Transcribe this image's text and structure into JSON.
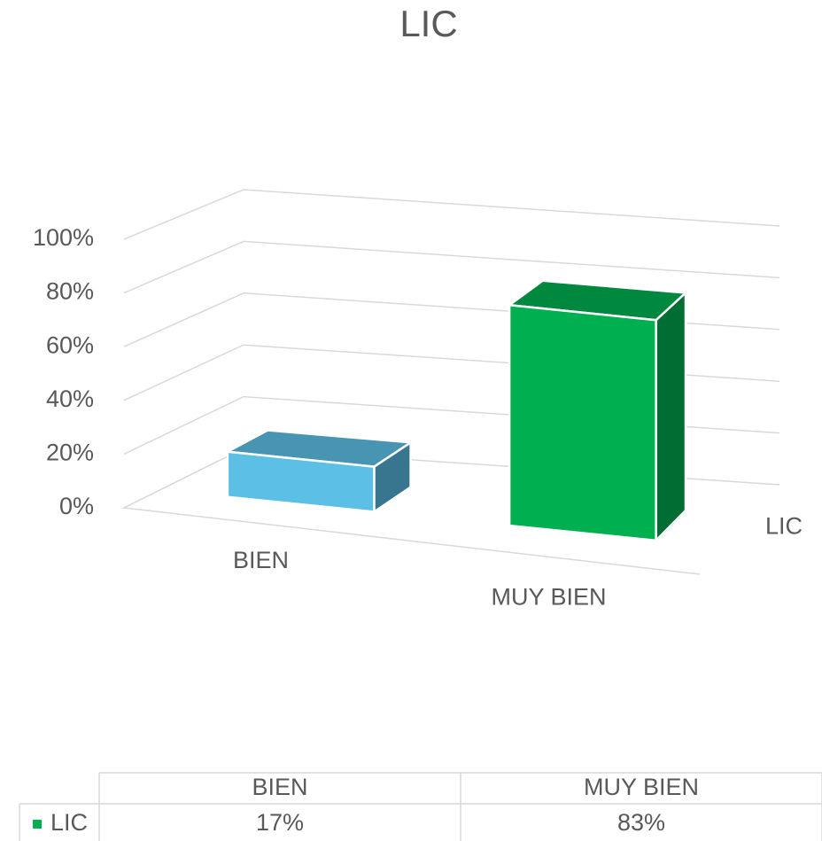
{
  "chart_data": {
    "type": "bar3d",
    "title": "LIC",
    "categories": [
      "BIEN",
      "MUY BIEN"
    ],
    "series": [
      {
        "name": "LIC",
        "color": "#00b050",
        "point_colors": [
          "#5bbfe6",
          "#00b050"
        ],
        "values": [
          17,
          83
        ],
        "value_labels": [
          "17%",
          "83%"
        ]
      }
    ],
    "ylim": [
      0,
      100
    ],
    "yticks": [
      {
        "value": 0,
        "label": "0%"
      },
      {
        "value": 20,
        "label": "20%"
      },
      {
        "value": 40,
        "label": "40%"
      },
      {
        "value": 60,
        "label": "60%"
      },
      {
        "value": 80,
        "label": "80%"
      },
      {
        "value": 100,
        "label": "100%"
      }
    ],
    "grid": true,
    "data_table": true
  }
}
